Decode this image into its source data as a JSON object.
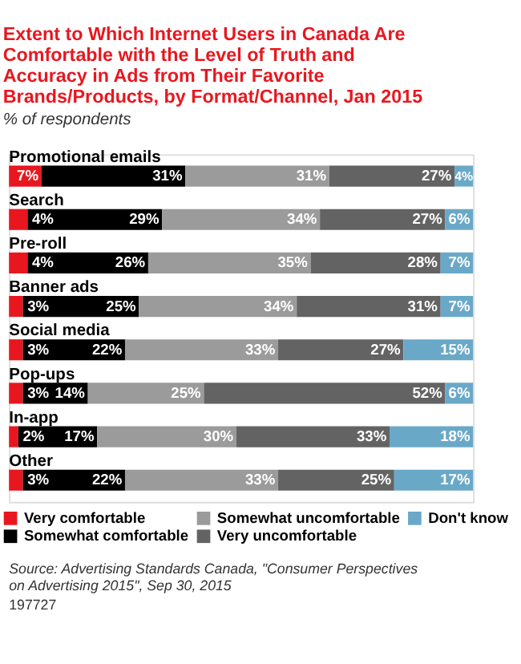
{
  "chart_data": {
    "type": "bar",
    "orientation": "horizontal",
    "stacked": true,
    "legend": "bottom",
    "title": "Extent to Which Internet Users in Canada Are Comfortable with the Level of Truth and Accuracy in Ads from Their Favorite Brands/Products, by Format/Channel, Jan 2015",
    "subtitle": "% of respondents",
    "categories": [
      "Promotional emails",
      "Search",
      "Pre-roll",
      "Banner ads",
      "Social media",
      "Pop-ups",
      "In-app",
      "Other"
    ],
    "series": [
      {
        "name": "Very comfortable",
        "color": "#e8171f",
        "values": [
          7,
          4,
          4,
          3,
          3,
          3,
          2,
          3
        ],
        "value_labels": [
          "7%",
          "4%",
          "4%",
          "3%",
          "3%",
          "3%",
          "2%",
          "3%"
        ]
      },
      {
        "name": "Somewhat comfortable",
        "color": "#000000",
        "values": [
          31,
          29,
          26,
          25,
          22,
          14,
          17,
          22
        ],
        "value_labels": [
          "31%",
          "29%",
          "26%",
          "25%",
          "22%",
          "14%",
          "17%",
          "22%"
        ]
      },
      {
        "name": "Somewhat uncomfortable",
        "color": "#9b9b9b",
        "values": [
          31,
          34,
          35,
          34,
          33,
          25,
          30,
          33
        ],
        "value_labels": [
          "31%",
          "34%",
          "35%",
          "34%",
          "33%",
          "25%",
          "30%",
          "33%"
        ]
      },
      {
        "name": "Very uncomfortable",
        "color": "#636363",
        "values": [
          27,
          27,
          28,
          31,
          27,
          52,
          33,
          25
        ],
        "value_labels": [
          "27%",
          "27%",
          "28%",
          "31%",
          "27%",
          "52%",
          "33%",
          "25%"
        ]
      },
      {
        "name": "Don't know",
        "color": "#6aa8c8",
        "values": [
          4,
          6,
          7,
          7,
          15,
          6,
          18,
          17
        ],
        "value_labels": [
          "4%",
          "6%",
          "7%",
          "7%",
          "15%",
          "6%",
          "18%",
          "17%"
        ]
      }
    ],
    "annotations": [
      "Source: Advertising Standards Canada, \"Consumer Perspectives on Advertising 2015\", Sep 30, 2015",
      "197727"
    ]
  }
}
